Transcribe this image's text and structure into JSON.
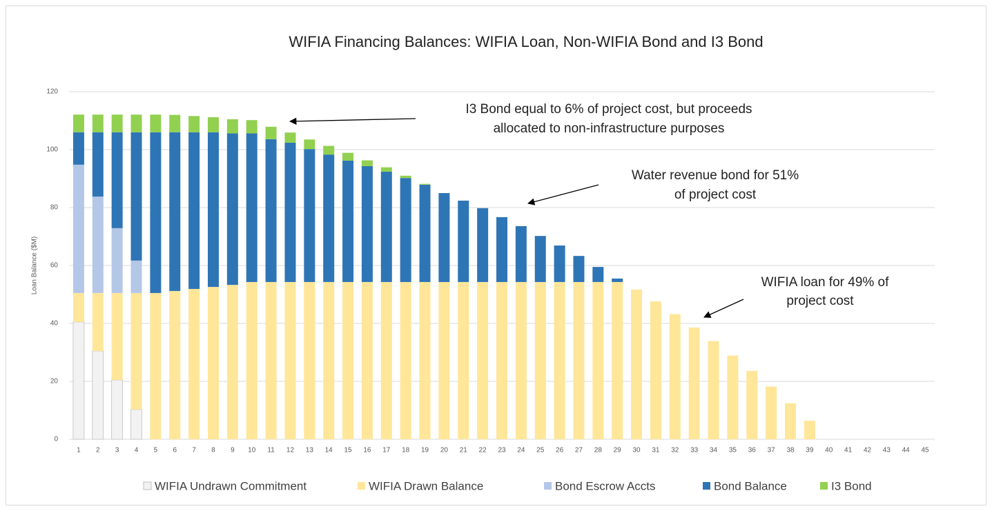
{
  "chart_data": {
    "type": "stacked_bar",
    "title": "WIFIA  Financing Balances: WIFIA Loan, Non-WIFIA Bond and I3 Bond",
    "y_label": "Loan Balance ($M)",
    "categories": [
      "1",
      "2",
      "3",
      "4",
      "5",
      "6",
      "7",
      "8",
      "9",
      "10",
      "11",
      "12",
      "13",
      "14",
      "15",
      "16",
      "17",
      "18",
      "19",
      "20",
      "21",
      "22",
      "23",
      "24",
      "25",
      "26",
      "27",
      "28",
      "29",
      "30",
      "31",
      "32",
      "33",
      "34",
      "35",
      "36",
      "37",
      "38",
      "39",
      "40",
      "41",
      "42",
      "43",
      "44",
      "45"
    ],
    "series": [
      {
        "name": "WIFIA Undrawn Commitment",
        "color": "#f2f2f2",
        "values": [
          40.5,
          30.5,
          20.5,
          10.3,
          0,
          0,
          0,
          0,
          0,
          0,
          0,
          0,
          0,
          0,
          0,
          0,
          0,
          0,
          0,
          0,
          0,
          0,
          0,
          0,
          0,
          0,
          0,
          0,
          0,
          0,
          0,
          0,
          0,
          0,
          0,
          0,
          0,
          0,
          0,
          0,
          0,
          0,
          0,
          0,
          0
        ]
      },
      {
        "name": "WIFIA Drawn Balance",
        "color": "#ffe699",
        "values": [
          10,
          20,
          30,
          40.2,
          50.5,
          51.2,
          51.9,
          52.6,
          53.3,
          54.3,
          54.3,
          54.3,
          54.3,
          54.3,
          54.3,
          54.3,
          54.3,
          54.3,
          54.3,
          54.3,
          54.3,
          54.3,
          54.3,
          54.3,
          54.3,
          54.3,
          54.3,
          54.3,
          54.3,
          51.7,
          47.6,
          43.2,
          38.6,
          33.9,
          28.9,
          23.6,
          18.2,
          12.4,
          6.4,
          0,
          0,
          0,
          0,
          0,
          0
        ]
      },
      {
        "name": "Bond Escrow Accts",
        "color": "#b4c7e7",
        "values": [
          44.3,
          33.3,
          22.4,
          11.2,
          0,
          0,
          0,
          0,
          0,
          0,
          0,
          0,
          0,
          0,
          0,
          0,
          0,
          0,
          0,
          0,
          0,
          0,
          0,
          0,
          0,
          0,
          0,
          0,
          0,
          0,
          0,
          0,
          0,
          0,
          0,
          0,
          0,
          0,
          0,
          0,
          0,
          0,
          0,
          0,
          0
        ]
      },
      {
        "name": "Bond Balance",
        "color": "#2e75b6",
        "values": [
          11.2,
          22.2,
          33.1,
          44.3,
          55.5,
          54.8,
          54.1,
          53.4,
          52.3,
          51.3,
          49.3,
          48.1,
          45.9,
          44,
          41.9,
          40,
          38.1,
          35.9,
          33.6,
          30.7,
          28.1,
          25.5,
          22.4,
          19.3,
          15.9,
          12.6,
          9,
          5.2,
          1.2,
          0,
          0,
          0,
          0,
          0,
          0,
          0,
          0,
          0,
          0,
          0,
          0,
          0,
          0,
          0,
          0
        ]
      },
      {
        "name": "I3 Bond",
        "color": "#92d050",
        "values": [
          6.1,
          6.1,
          6.1,
          6.1,
          6.1,
          6,
          5.6,
          5.2,
          4.9,
          4.6,
          4.3,
          3.5,
          3.3,
          3,
          2.7,
          2,
          1.5,
          0.8,
          0.3,
          0,
          0,
          0,
          0,
          0,
          0,
          0,
          0,
          0,
          0,
          0,
          0,
          0,
          0,
          0,
          0,
          0,
          0,
          0,
          0,
          0,
          0,
          0,
          0,
          0,
          0
        ]
      }
    ],
    "ylim": [
      0,
      120
    ],
    "yticks": [
      0,
      20,
      40,
      60,
      80,
      100,
      120
    ],
    "grid": true,
    "legend": "bottom",
    "annotations": [
      {
        "lines": [
          "I3 Bond equal to 6% of project cost, but proceeds",
          "allocated to non-infrastructure purposes"
        ]
      },
      {
        "lines": [
          "Water revenue bond for 51%",
          "of project cost"
        ]
      },
      {
        "lines": [
          "WIFIA loan for 49% of",
          "project cost"
        ]
      }
    ]
  }
}
